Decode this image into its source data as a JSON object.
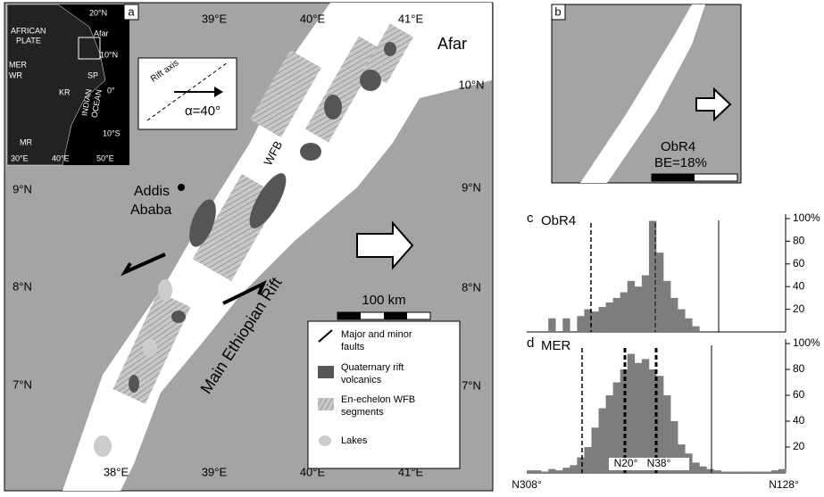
{
  "panel_a": {
    "label": "a",
    "lat_left": [
      "9°N",
      "8°N",
      "7°N"
    ],
    "lat_right": [
      "10°N",
      "9°N",
      "8°N",
      "7°N"
    ],
    "lon_top": [
      "39°E",
      "40°E",
      "41°E"
    ],
    "lon_bottom": [
      "38°E",
      "39°E",
      "40°E",
      "41°E"
    ],
    "afar": "Afar",
    "addis": [
      "Addis",
      "Ababa"
    ],
    "wfb": "WFB",
    "mer": "Main Ethiopian Rift",
    "scale_bar": "100 km",
    "rift_axis": "Rift axis",
    "alpha": "α=40°",
    "inset": {
      "n20": "20°N",
      "plate": [
        "AFRICAN",
        "PLATE"
      ],
      "afar": "Afar",
      "n10": "10°N",
      "mer": "MER",
      "wr": "WR",
      "sp": "SP",
      "eq": "0°",
      "kr": "KR",
      "ocean": [
        "INDIAN",
        "OCEAN"
      ],
      "s10": "10°S",
      "mr": "MR",
      "e30": "30°E",
      "e40": "40°E",
      "e50": "50°E"
    },
    "legend": [
      [
        "Major and minor",
        "faults"
      ],
      [
        "Quaternary rift",
        "volcanics"
      ],
      [
        "En-echelon WFB",
        "segments"
      ],
      [
        "Lakes"
      ]
    ]
  },
  "panel_b": {
    "label": "b",
    "name": "ObR4",
    "be": "BE=18%"
  },
  "histograms": [
    {
      "label": "c",
      "name": "ObR4",
      "yticks": [
        {
          "value": 100,
          "label": "100%"
        },
        80,
        60,
        40,
        20
      ],
      "values": [
        0,
        0,
        0,
        12,
        0,
        12,
        0,
        14,
        20,
        18,
        22,
        26,
        30,
        35,
        45,
        40,
        50,
        98,
        70,
        45,
        30,
        20,
        12,
        5,
        0,
        0,
        0,
        0,
        0,
        0,
        0,
        0,
        0,
        0,
        0,
        0
      ]
    },
    {
      "label": "d",
      "name": "MER",
      "yticks": [
        {
          "value": 100,
          "label": "100%"
        },
        80,
        60,
        40,
        20
      ],
      "values": [
        2,
        2,
        1,
        3,
        2,
        4,
        6,
        12,
        20,
        35,
        50,
        60,
        70,
        80,
        92,
        85,
        88,
        80,
        75,
        60,
        40,
        22,
        15,
        8,
        5,
        3,
        2,
        1,
        1,
        1,
        1,
        1,
        1,
        1,
        2,
        3
      ],
      "marks": [
        "N20°",
        "N38°"
      ],
      "x_start": "N308°",
      "x_end": "N128°"
    }
  ]
}
